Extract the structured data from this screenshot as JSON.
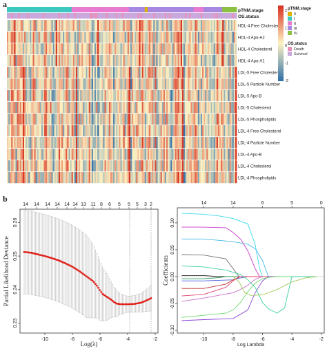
{
  "panels": {
    "a": "a",
    "b": "b"
  },
  "heatmap": {
    "annotation_labels": [
      "pTNM.stage",
      "OS.status"
    ],
    "rows": [
      "HDL-4 Free Cholesterol",
      "HDL-4 Apo-A2",
      "HDL-4 Cholesterol",
      "HDL-4 Apo-A1",
      "LDL-5 Free Cholesterol",
      "LDL-5 Particle Number",
      "LDL-5 Apo-B",
      "LDL-5 Cholesterol",
      "LDL-5 Phospholipids",
      "LDL-4 Free Cholesterol",
      "LDL-4 Particle Number",
      "LDL-4 Apo-B",
      "LDL-4 Cholesterol",
      "LDL-4 Phospholipids"
    ],
    "legend": {
      "stage_title": "pTNM.stage",
      "stage_items": [
        {
          "label": "0",
          "color": "#e0b000"
        },
        {
          "label": "I",
          "color": "#3cc8c0"
        },
        {
          "label": "II",
          "color": "#e87ad0"
        },
        {
          "label": "III",
          "color": "#a688e0"
        },
        {
          "label": "IV",
          "color": "#8cc040"
        }
      ],
      "status_title": "OS.status",
      "status_items": [
        {
          "label": "Death",
          "color": "#e98fb8"
        },
        {
          "label": "Survival",
          "color": "#c9a8dc"
        }
      ],
      "scale_ticks": [
        "2",
        "1",
        "0",
        "-1",
        "-2"
      ],
      "scale_colors": [
        "#d7301f",
        "#fdf2c2",
        "#2f6fa8"
      ]
    }
  },
  "chart_data": [
    {
      "type": "line",
      "panel": "b-left",
      "xlabel": "Log(λ)",
      "ylabel": "Partial Likelihood Deviance",
      "xlim": [
        -11.8,
        -1.8
      ],
      "ylim": [
        0.227,
        0.264
      ],
      "xticks": [
        "-10",
        "-8",
        "-6",
        "-4",
        "-2"
      ],
      "xtick_values": [
        -10,
        -8,
        -6,
        -4,
        -2
      ],
      "yticks": [
        "0.23",
        "0.24",
        "0.25",
        "0.26"
      ],
      "ytick_values": [
        0.23,
        0.24,
        0.25,
        0.26
      ],
      "top_labels": [
        "14",
        "14",
        "14",
        "14",
        "14",
        "14",
        "13",
        "11",
        "8",
        "6",
        "5",
        "5",
        "5",
        "3",
        "2"
      ],
      "top_label_x": [
        -11.4,
        -10.6,
        -9.8,
        -9.1,
        -8.4,
        -7.8,
        -7.2,
        -6.5,
        -5.9,
        -5.3,
        -4.6,
        -3.9,
        -3.3,
        -2.7,
        -2.3
      ],
      "vlines": [
        -3.85,
        -2.3
      ],
      "series": [
        {
          "x": [
            -11.5,
            -11.0,
            -10.5,
            -10.0,
            -9.5,
            -9.0,
            -8.5,
            -8.0,
            -7.5,
            -7.0,
            -6.5,
            -6.2,
            -6.0,
            -5.8,
            -5.5,
            -5.2,
            -5.0,
            -4.8,
            -4.5,
            -4.0,
            -3.5,
            -3.0,
            -2.5,
            -2.3
          ],
          "y": [
            0.2512,
            0.251,
            0.2505,
            0.25,
            0.2494,
            0.2487,
            0.2478,
            0.2468,
            0.2455,
            0.244,
            0.2425,
            0.241,
            0.2397,
            0.2386,
            0.2378,
            0.237,
            0.2363,
            0.2358,
            0.2356,
            0.2356,
            0.2357,
            0.2361,
            0.237,
            0.2374
          ],
          "err": [
            0.0125,
            0.0125,
            0.0124,
            0.0124,
            0.0124,
            0.0124,
            0.0124,
            0.0124,
            0.0124,
            0.0124,
            0.011,
            0.0095,
            0.009,
            0.008,
            0.007,
            0.0055,
            0.0045,
            0.004,
            0.003,
            0.0024,
            0.0025,
            0.0028,
            0.0035,
            0.0038
          ]
        }
      ]
    },
    {
      "type": "line",
      "panel": "b-right",
      "xlabel": "Log Lambda",
      "ylabel": "Coefficients",
      "xlim": [
        -11.8,
        -1.8
      ],
      "ylim": [
        -0.105,
        0.128
      ],
      "xticks": [
        "-10",
        "-8",
        "-6",
        "-4",
        "-2"
      ],
      "xtick_values": [
        -10,
        -8,
        -6,
        -4,
        -2
      ],
      "yticks": [
        "0.10",
        "0.05",
        "0.00",
        "-0.05",
        "-0.10"
      ],
      "ytick_values": [
        0.1,
        0.05,
        0.0,
        -0.05,
        -0.1
      ],
      "top_labels": [
        "14",
        "14",
        "6",
        "5",
        "0"
      ],
      "top_label_x": [
        -10.0,
        -8.0,
        -6.0,
        -4.0,
        -2.0
      ],
      "series": [
        {
          "color": "#36d9e8",
          "x": [
            -11.5,
            -10,
            -9,
            -8,
            -7,
            -6.5,
            -6.2,
            -6.0
          ],
          "y": [
            0.118,
            0.116,
            0.113,
            0.108,
            0.098,
            0.06,
            0.015,
            0.0
          ]
        },
        {
          "color": "#46b8e8",
          "x": [
            -11.5,
            -10,
            -8,
            -7,
            -6.5,
            -6.0,
            -5.6
          ],
          "y": [
            0.07,
            0.07,
            0.065,
            0.06,
            0.052,
            0.03,
            0.0
          ]
        },
        {
          "color": "#c838c8",
          "x": [
            -11.5,
            -10,
            -8.5,
            -8,
            -7.5,
            -7.0,
            -6.5,
            -6.2
          ],
          "y": [
            0.092,
            0.092,
            0.091,
            0.082,
            0.07,
            0.048,
            0.015,
            0.0
          ]
        },
        {
          "color": "#707070",
          "x": [
            -11.5,
            -10,
            -8.5,
            -8.0,
            -7.6
          ],
          "y": [
            0.041,
            0.04,
            0.033,
            0.015,
            0.0
          ]
        },
        {
          "color": "#2a2a2a",
          "x": [
            -11.5,
            -10,
            -9.5,
            -9.0
          ],
          "y": [
            0.002,
            0.002,
            0.001,
            0.0
          ]
        },
        {
          "color": "#2f9a5a",
          "x": [
            -11.5,
            -10,
            -9,
            -8.5
          ],
          "y": [
            -0.004,
            -0.004,
            -0.002,
            0.0
          ]
        },
        {
          "color": "#5060e0",
          "x": [
            -11.5,
            -10,
            -8,
            -7.6,
            -7.0
          ],
          "y": [
            -0.008,
            -0.008,
            -0.006,
            -0.003,
            0.0
          ]
        },
        {
          "color": "#c03030",
          "x": [
            -11.5,
            -10,
            -8.5,
            -8.0,
            -7.5
          ],
          "y": [
            -0.022,
            -0.022,
            -0.014,
            -0.006,
            0.0
          ]
        },
        {
          "color": "#c86ec8",
          "x": [
            -11.5,
            -10,
            -8,
            -7.5,
            -7.0,
            -6.5,
            -6.0
          ],
          "y": [
            -0.046,
            -0.04,
            -0.03,
            -0.024,
            -0.016,
            -0.005,
            0.0
          ]
        },
        {
          "color": "#e03c6e",
          "x": [
            -11.5,
            -10,
            -8.5,
            -8.0,
            -7.6
          ],
          "y": [
            -0.036,
            -0.033,
            -0.02,
            -0.008,
            0.0
          ]
        },
        {
          "color": "#8a45d8",
          "x": [
            -11.5,
            -10,
            -8,
            -7.5,
            -7.0,
            -6.5,
            -6.0,
            -5.6
          ],
          "y": [
            -0.082,
            -0.08,
            -0.078,
            -0.07,
            -0.062,
            -0.03,
            -0.008,
            0.0
          ]
        },
        {
          "color": "#6ed86e",
          "x": [
            -11.5,
            -10,
            -8.5,
            -8,
            -7.5,
            -7,
            -6.5,
            -6,
            -5.5,
            -5
          ],
          "y": [
            -0.076,
            -0.072,
            -0.068,
            -0.062,
            -0.048,
            -0.028,
            -0.012,
            -0.004,
            -0.001,
            0.0
          ]
        },
        {
          "color": "#3ad0a0",
          "x": [
            -11.5,
            -10,
            -8.5,
            -8.0,
            -7.5,
            -7.0,
            -6.5,
            -6.0,
            -5.6,
            -5.0,
            -4.5,
            -4.0
          ],
          "y": [
            0.02,
            0.018,
            0.012,
            0.008,
            0.004,
            -0.006,
            -0.02,
            -0.048,
            -0.06,
            -0.068,
            -0.058,
            0.0
          ]
        },
        {
          "color": "#a0c858",
          "x": [
            -8.0,
            -7.6,
            -7.2,
            -6.8,
            -6.0,
            -5.0,
            -4.0,
            -3.0,
            -2.3
          ],
          "y": [
            0.0,
            -0.01,
            -0.03,
            -0.035,
            -0.034,
            -0.024,
            -0.01,
            -0.002,
            0.0
          ]
        }
      ]
    }
  ]
}
